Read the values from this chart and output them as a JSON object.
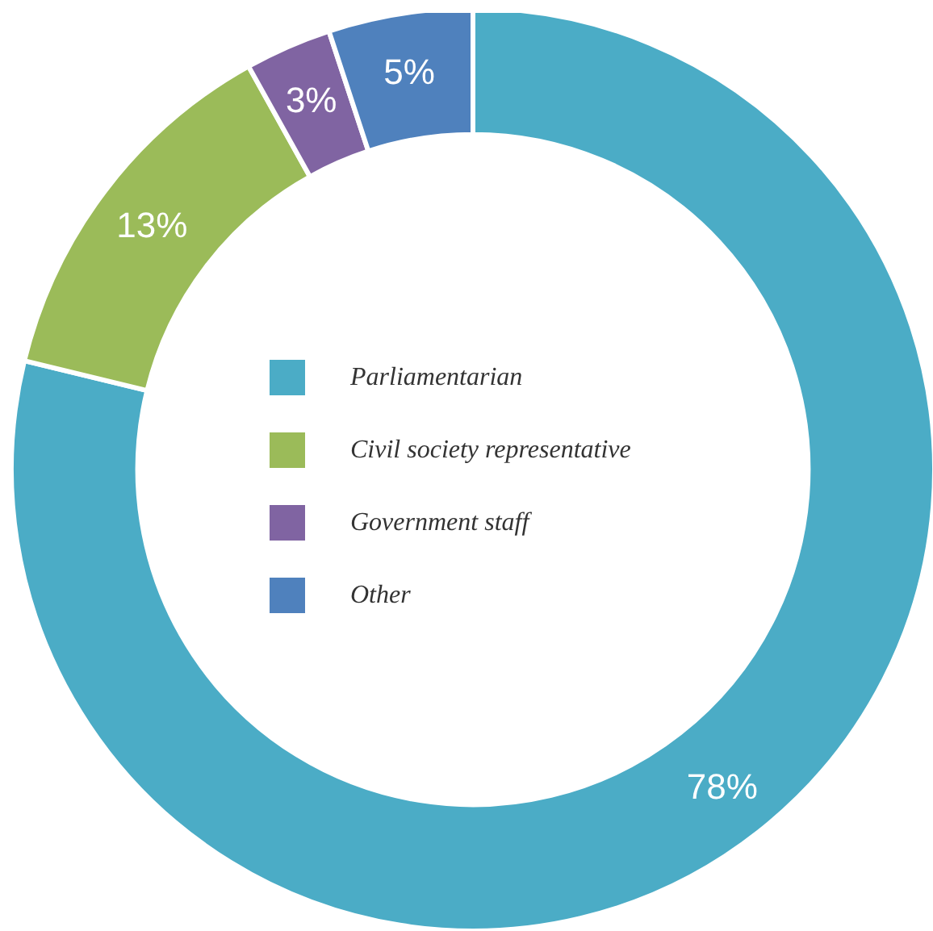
{
  "chart_data": {
    "type": "donut",
    "categories": [
      "Parliamentarian",
      "Civil society representative",
      "Government staff",
      "Other"
    ],
    "values": [
      78,
      13,
      3,
      5
    ],
    "colors": [
      "#4bacc6",
      "#9bbb59",
      "#8064a2",
      "#4f81bd"
    ],
    "value_labels": [
      "78%",
      "13%",
      "3%",
      "5%"
    ],
    "legend": "center"
  }
}
